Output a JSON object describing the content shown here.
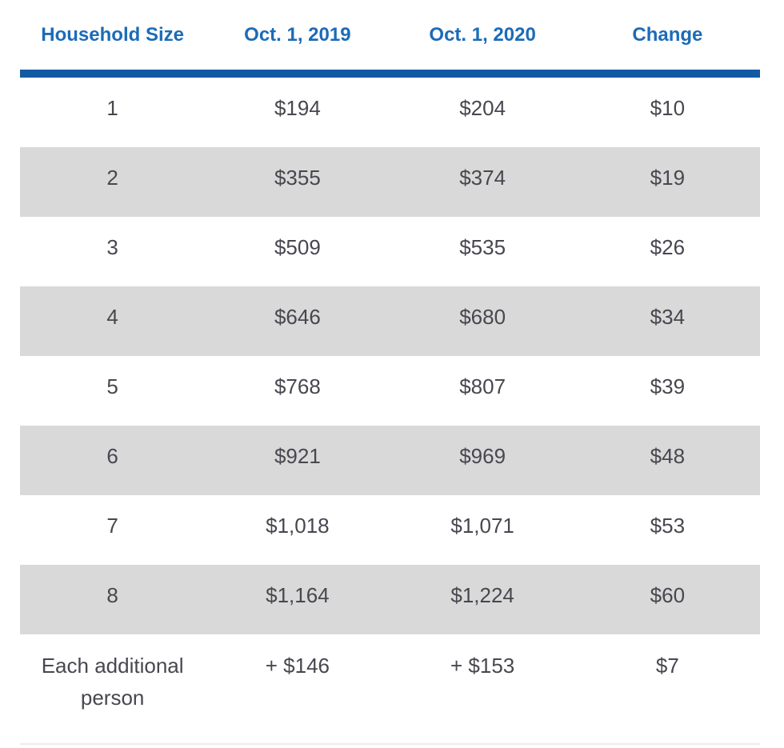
{
  "table": {
    "columns": [
      "Household Size",
      "Oct. 1, 2019",
      "Oct. 1, 2020",
      "Change"
    ],
    "rows": [
      [
        "1",
        "$194",
        "$204",
        "$10"
      ],
      [
        "2",
        "$355",
        "$374",
        "$19"
      ],
      [
        "3",
        "$509",
        "$535",
        "$26"
      ],
      [
        "4",
        "$646",
        "$680",
        "$34"
      ],
      [
        "5",
        "$768",
        "$807",
        "$39"
      ],
      [
        "6",
        "$921",
        "$969",
        "$48"
      ],
      [
        "7",
        "$1,018",
        "$1,071",
        "$53"
      ],
      [
        "8",
        "$1,164",
        "$1,224",
        "$60"
      ],
      [
        "Each additional person",
        "+ $146",
        "+ $153",
        "$7"
      ]
    ]
  },
  "chart_data": {
    "type": "table",
    "title": "",
    "columns": [
      "Household Size",
      "Oct. 1, 2019",
      "Oct. 1, 2020",
      "Change"
    ],
    "rows": [
      {
        "household_size": "1",
        "oct_1_2019": 194,
        "oct_1_2020": 204,
        "change": 10
      },
      {
        "household_size": "2",
        "oct_1_2019": 355,
        "oct_1_2020": 374,
        "change": 19
      },
      {
        "household_size": "3",
        "oct_1_2019": 509,
        "oct_1_2020": 535,
        "change": 26
      },
      {
        "household_size": "4",
        "oct_1_2019": 646,
        "oct_1_2020": 680,
        "change": 34
      },
      {
        "household_size": "5",
        "oct_1_2019": 768,
        "oct_1_2020": 807,
        "change": 39
      },
      {
        "household_size": "6",
        "oct_1_2019": 921,
        "oct_1_2020": 969,
        "change": 48
      },
      {
        "household_size": "7",
        "oct_1_2019": 1018,
        "oct_1_2020": 1071,
        "change": 53
      },
      {
        "household_size": "8",
        "oct_1_2019": 1164,
        "oct_1_2020": 1224,
        "change": 60
      },
      {
        "household_size": "Each additional person",
        "oct_1_2019": "+ $146",
        "oct_1_2020": "+ $153",
        "change": 7
      }
    ],
    "layout_hints": {
      "zebra_striping": true,
      "stripe_rows": [
        2,
        4,
        6,
        8
      ],
      "header_divider": "thick blue rule",
      "cell_alignment": "center"
    }
  },
  "colors": {
    "header_text": "#1C6BB7",
    "header_rule": "#115AA4",
    "stripe_bg": "#D9D9D9",
    "body_text": "#47474F",
    "page_bg": "#FFFFFF",
    "bottom_border": "#EBEBEB"
  }
}
